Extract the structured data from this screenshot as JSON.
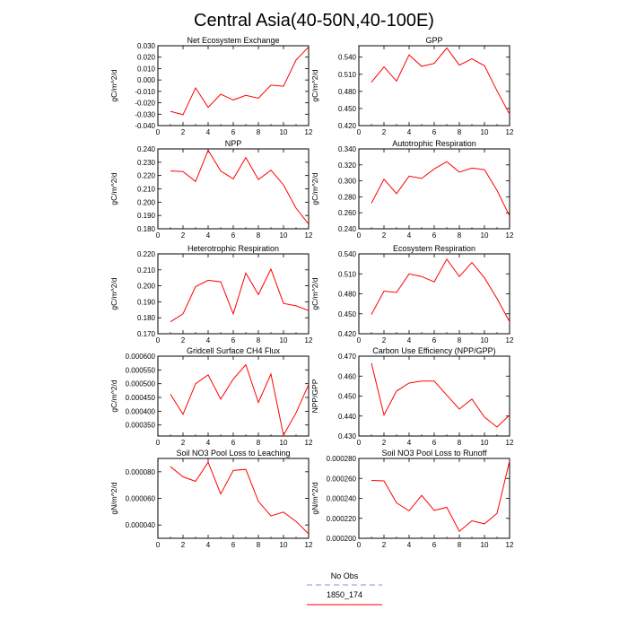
{
  "figure": {
    "title": "Central Asia(40-50N,40-100E)",
    "line_color": "#ff0000",
    "obs_color": "#8888ff"
  },
  "legend": {
    "items": [
      {
        "label": "No Obs",
        "color": "#8888ff",
        "style": "dashed"
      },
      {
        "label": "1850_174",
        "color": "#ff0000",
        "style": "solid"
      }
    ]
  },
  "chart_data": [
    {
      "type": "line",
      "title": "Net Ecosystem Exchange",
      "ylabel": "gC/m^2/d",
      "x": [
        1,
        2,
        3,
        4,
        5,
        6,
        7,
        8,
        9,
        10,
        11,
        12
      ],
      "xlim": [
        0,
        12
      ],
      "xticks": [
        0,
        2,
        4,
        6,
        8,
        10,
        12
      ],
      "ylim": [
        -0.04,
        0.03
      ],
      "yticks": [
        "-0.040",
        "-0.030",
        "-0.020",
        "-0.010",
        "0.000",
        "0.010",
        "0.020",
        "0.030"
      ],
      "series": [
        {
          "values": [
            -0.0275,
            -0.0305,
            -0.007,
            -0.024,
            -0.0125,
            -0.0175,
            -0.0135,
            -0.016,
            -0.0045,
            -0.0055,
            0.0175,
            0.029
          ]
        }
      ]
    },
    {
      "type": "line",
      "title": "GPP",
      "ylabel": "gC/m^2/d",
      "x": [
        1,
        2,
        3,
        4,
        5,
        6,
        7,
        8,
        9,
        10,
        11,
        12
      ],
      "xlim": [
        0,
        12
      ],
      "xticks": [
        0,
        2,
        4,
        6,
        8,
        10,
        12
      ],
      "ylim": [
        0.42,
        0.56
      ],
      "yticks": [
        "0.420",
        "0.450",
        "0.480",
        "0.510",
        "0.540"
      ],
      "series": [
        {
          "values": [
            0.496,
            0.523,
            0.498,
            0.544,
            0.524,
            0.529,
            0.556,
            0.526,
            0.537,
            0.525,
            0.481,
            0.44
          ]
        }
      ]
    },
    {
      "type": "line",
      "title": "NPP",
      "ylabel": "gC/m^2/d",
      "x": [
        1,
        2,
        3,
        4,
        5,
        6,
        7,
        8,
        9,
        10,
        11,
        12
      ],
      "xlim": [
        0,
        12
      ],
      "xticks": [
        0,
        2,
        4,
        6,
        8,
        10,
        12
      ],
      "ylim": [
        0.18,
        0.24
      ],
      "yticks": [
        "0.180",
        "0.190",
        "0.200",
        "0.210",
        "0.220",
        "0.230",
        "0.240"
      ],
      "series": [
        {
          "values": [
            0.2235,
            0.223,
            0.2155,
            0.239,
            0.2235,
            0.2175,
            0.2335,
            0.217,
            0.224,
            0.213,
            0.1955,
            0.1835
          ]
        }
      ]
    },
    {
      "type": "line",
      "title": "Autotrophic Respiration",
      "ylabel": "gC/m^2/d",
      "x": [
        1,
        2,
        3,
        4,
        5,
        6,
        7,
        8,
        9,
        10,
        11,
        12
      ],
      "xlim": [
        0,
        12
      ],
      "xticks": [
        0,
        2,
        4,
        6,
        8,
        10,
        12
      ],
      "ylim": [
        0.24,
        0.34
      ],
      "yticks": [
        "0.240",
        "0.260",
        "0.280",
        "0.300",
        "0.320",
        "0.340"
      ],
      "series": [
        {
          "values": [
            0.272,
            0.302,
            0.284,
            0.306,
            0.303,
            0.315,
            0.324,
            0.311,
            0.316,
            0.314,
            0.288,
            0.256
          ]
        }
      ]
    },
    {
      "type": "line",
      "title": "Heterotrophic Respiration",
      "ylabel": "gC/m^2/d",
      "x": [
        1,
        2,
        3,
        4,
        5,
        6,
        7,
        8,
        9,
        10,
        11,
        12
      ],
      "xlim": [
        0,
        12
      ],
      "xticks": [
        0,
        2,
        4,
        6,
        8,
        10,
        12
      ],
      "ylim": [
        0.17,
        0.22
      ],
      "yticks": [
        "0.170",
        "0.180",
        "0.190",
        "0.200",
        "0.210",
        "0.220"
      ],
      "series": [
        {
          "values": [
            0.1775,
            0.1825,
            0.1995,
            0.2035,
            0.2025,
            0.1825,
            0.208,
            0.1945,
            0.2105,
            0.189,
            0.1875,
            0.1845
          ]
        }
      ]
    },
    {
      "type": "line",
      "title": "Ecosystem Respiration",
      "ylabel": "gC/m^2/d",
      "x": [
        1,
        2,
        3,
        4,
        5,
        6,
        7,
        8,
        9,
        10,
        11,
        12
      ],
      "xlim": [
        0,
        12
      ],
      "xticks": [
        0,
        2,
        4,
        6,
        8,
        10,
        12
      ],
      "ylim": [
        0.42,
        0.54
      ],
      "yticks": [
        "0.420",
        "0.450",
        "0.480",
        "0.510",
        "0.540"
      ],
      "series": [
        {
          "values": [
            0.449,
            0.484,
            0.482,
            0.51,
            0.506,
            0.498,
            0.532,
            0.506,
            0.527,
            0.504,
            0.473,
            0.438
          ]
        }
      ]
    },
    {
      "type": "line",
      "title": "Gridcell Surface CH4 Flux",
      "ylabel": "gC/m^2/d",
      "x": [
        1,
        2,
        3,
        4,
        5,
        6,
        7,
        8,
        9,
        10,
        11,
        12
      ],
      "xlim": [
        0,
        12
      ],
      "xticks": [
        0,
        2,
        4,
        6,
        8,
        10,
        12
      ],
      "ylim": [
        0.00031,
        0.0006
      ],
      "yticks": [
        "0.000350",
        "0.000400",
        "0.000450",
        "0.000500",
        "0.000550",
        "0.000600"
      ],
      "series": [
        {
          "values": [
            0.000462,
            0.000389,
            0.0005,
            0.000532,
            0.000444,
            0.000517,
            0.000569,
            0.000432,
            0.000535,
            0.000313,
            0.000394,
            0.000497
          ]
        }
      ]
    },
    {
      "type": "line",
      "title": "Carbon Use Efficiency (NPP/GPP)",
      "ylabel": "NPP/GPP",
      "x": [
        1,
        2,
        3,
        4,
        5,
        6,
        7,
        8,
        9,
        10,
        11,
        12
      ],
      "xlim": [
        0,
        12
      ],
      "xticks": [
        0,
        2,
        4,
        6,
        8,
        10,
        12
      ],
      "ylim": [
        0.43,
        0.47
      ],
      "yticks": [
        "0.430",
        "0.440",
        "0.450",
        "0.460",
        "0.470"
      ],
      "series": [
        {
          "values": [
            0.4665,
            0.4405,
            0.4525,
            0.4565,
            0.4575,
            0.4575,
            0.4505,
            0.4435,
            0.4485,
            0.4395,
            0.4345,
            0.4405
          ]
        }
      ]
    },
    {
      "type": "line",
      "title": "Soil NO3 Pool Loss to Leaching",
      "ylabel": "gN/m^2/d",
      "x": [
        1,
        2,
        3,
        4,
        5,
        6,
        7,
        8,
        9,
        10,
        11,
        12
      ],
      "xlim": [
        0,
        12
      ],
      "xticks": [
        0,
        2,
        4,
        6,
        8,
        10,
        12
      ],
      "ylim": [
        3e-05,
        9e-05
      ],
      "yticks": [
        "0.000040",
        "0.000060",
        "0.000080"
      ],
      "series": [
        {
          "values": [
            8.38e-05,
            7.62e-05,
            7.28e-05,
            8.72e-05,
            6.33e-05,
            8.1e-05,
            8.18e-05,
            5.78e-05,
            4.68e-05,
            4.97e-05,
            4.27e-05,
            3.33e-05
          ]
        }
      ]
    },
    {
      "type": "line",
      "title": "Soil NO3 Pool Loss to Runoff",
      "ylabel": "gN/m^2/d",
      "x": [
        1,
        2,
        3,
        4,
        5,
        6,
        7,
        8,
        9,
        10,
        11,
        12
      ],
      "xlim": [
        0,
        12
      ],
      "xticks": [
        0,
        2,
        4,
        6,
        8,
        10,
        12
      ],
      "ylim": [
        0.0002,
        0.00028
      ],
      "yticks": [
        "0.000200",
        "0.000220",
        "0.000240",
        "0.000260",
        "0.000280"
      ],
      "series": [
        {
          "values": [
            0.000258,
            0.0002575,
            0.0002355,
            0.0002275,
            0.000243,
            0.000228,
            0.000231,
            0.000207,
            0.0002175,
            0.0002145,
            0.000225,
            0.0002775
          ]
        }
      ]
    }
  ]
}
